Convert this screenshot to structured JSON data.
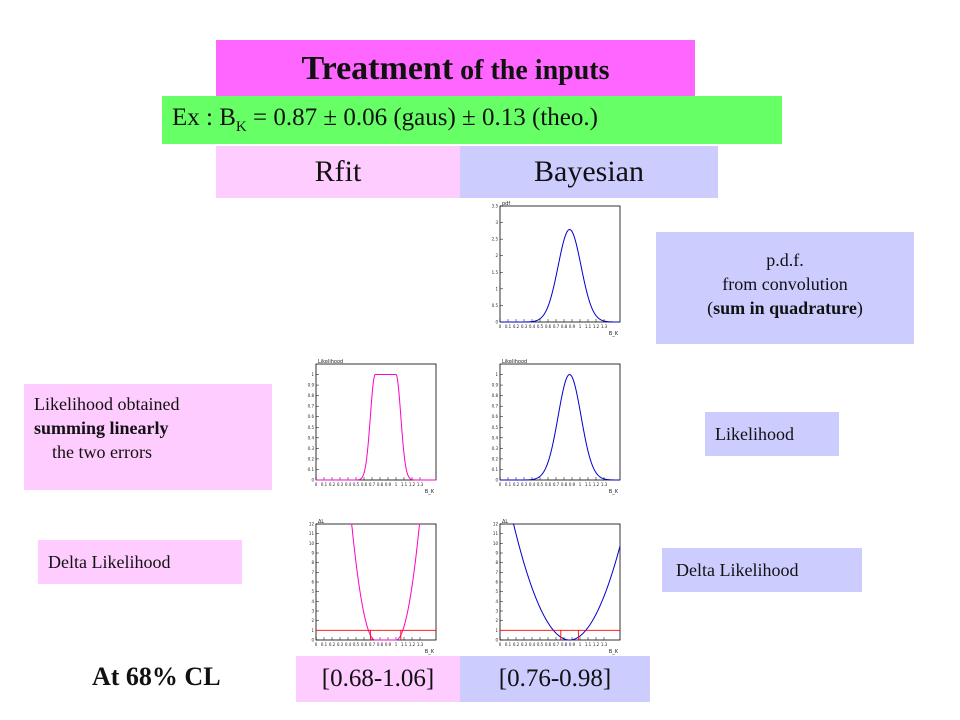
{
  "header": {
    "title_main": "Treatment",
    "title_rest": " of the inputs",
    "ex_prefix": "Ex   :   B",
    "ex_sub": "K",
    "ex_suffix": " = 0.87 ± 0.06 (gaus) ± 0.13 (theo.)"
  },
  "columns": {
    "rfit": "Rfit",
    "bayesian": "Bayesian"
  },
  "labels": {
    "pdf_line1": "p.d.f.",
    "pdf_line2": "from convolution",
    "pdf_line3_open": "(",
    "pdf_line3_bold": "sum in quadrature",
    "pdf_line3_close": ")",
    "lik_left_line1": "Likelihood obtained",
    "lik_left_line2": "summing linearly",
    "lik_left_line3": "the two errors",
    "lik_right": "Likelihood",
    "dl_left": "Delta Likelihood",
    "dl_right": "Delta Likelihood"
  },
  "results": {
    "cl_label": "At 68% CL",
    "rfit_interval": "[0.68-1.06]",
    "bayes_interval": "[0.76-0.98]"
  },
  "colors": {
    "rfit_curve": "#ff00cc",
    "bayes_curve": "#0000cc",
    "cl_line": "#ff0000"
  },
  "chart_data": [
    {
      "id": "bayes-pdf",
      "type": "line",
      "ylabel": "pdf",
      "xlabel": "B_K",
      "xlim": [
        0.0,
        1.5
      ],
      "ylim": [
        0,
        3.5
      ],
      "xticks": [
        "0",
        "0.1",
        "0.2",
        "0.3",
        "0.4",
        "0.5",
        "0.6",
        "0.7",
        "0.8",
        "0.9",
        "1",
        "1.1",
        "1.2",
        "1.3"
      ],
      "yticks": [
        "0",
        "0.5",
        "1",
        "1.5",
        "2",
        "2.5",
        "3",
        "3.5"
      ],
      "series": [
        {
          "shape": "gaussian",
          "mean": 0.87,
          "sigma": 0.143,
          "peak": 2.79
        }
      ]
    },
    {
      "id": "rfit-likelihood",
      "type": "line",
      "ylabel": "Likelihood",
      "xlabel": "B_K",
      "xlim": [
        0.0,
        1.5
      ],
      "ylim": [
        0,
        1.1
      ],
      "xticks": [
        "0",
        "0.1",
        "0.2",
        "0.3",
        "0.4",
        "0.5",
        "0.6",
        "0.7",
        "0.8",
        "0.9",
        "1",
        "1.1",
        "1.2",
        "1.3"
      ],
      "yticks": [
        "0",
        "0.1",
        "0.2",
        "0.3",
        "0.4",
        "0.5",
        "0.6",
        "0.7",
        "0.8",
        "0.9",
        "1"
      ],
      "series": [
        {
          "shape": "flat-top",
          "plateau": [
            0.74,
            1.0
          ],
          "sigma": 0.06,
          "peak": 1.0
        }
      ]
    },
    {
      "id": "bayes-likelihood",
      "type": "line",
      "ylabel": "Likelihood",
      "xlabel": "B_K",
      "xlim": [
        0.0,
        1.5
      ],
      "ylim": [
        0,
        1.1
      ],
      "xticks": [
        "0",
        "0.1",
        "0.2",
        "0.3",
        "0.4",
        "0.5",
        "0.6",
        "0.7",
        "0.8",
        "0.9",
        "1",
        "1.1",
        "1.2",
        "1.3"
      ],
      "yticks": [
        "0",
        "0.1",
        "0.2",
        "0.3",
        "0.4",
        "0.5",
        "0.6",
        "0.7",
        "0.8",
        "0.9",
        "1"
      ],
      "series": [
        {
          "shape": "gaussian",
          "mean": 0.87,
          "sigma": 0.143,
          "peak": 1.0
        }
      ]
    },
    {
      "id": "rfit-delta-likelihood",
      "type": "line",
      "ylabel": "ΔL",
      "xlabel": "B_K",
      "xlim": [
        0.0,
        1.5
      ],
      "ylim": [
        0,
        12
      ],
      "xticks": [
        "0",
        "0.1",
        "0.2",
        "0.3",
        "0.4",
        "0.5",
        "0.6",
        "0.7",
        "0.8",
        "0.9",
        "1",
        "1.1",
        "1.2",
        "1.3"
      ],
      "yticks": [
        "0",
        "1",
        "2",
        "3",
        "4",
        "5",
        "6",
        "7",
        "8",
        "9",
        "10",
        "11",
        "12"
      ],
      "series": [
        {
          "shape": "flat-bottom",
          "plateau": [
            0.74,
            1.0
          ],
          "sigma": 0.06
        }
      ],
      "cl_level": 1.0,
      "interval": [
        0.68,
        1.06
      ]
    },
    {
      "id": "bayes-delta-likelihood",
      "type": "line",
      "ylabel": "ΔL",
      "xlabel": "B_K",
      "xlim": [
        0.0,
        1.5
      ],
      "ylim": [
        0,
        12
      ],
      "xticks": [
        "0",
        "0.1",
        "0.2",
        "0.3",
        "0.4",
        "0.5",
        "0.6",
        "0.7",
        "0.8",
        "0.9",
        "1",
        "1.1",
        "1.2",
        "1.3"
      ],
      "yticks": [
        "0",
        "1",
        "2",
        "3",
        "4",
        "5",
        "6",
        "7",
        "8",
        "9",
        "10",
        "11",
        "12"
      ],
      "series": [
        {
          "shape": "parabola",
          "mean": 0.87,
          "sigma": 0.143
        }
      ],
      "cl_level": 1.0,
      "interval": [
        0.76,
        0.98
      ]
    }
  ]
}
